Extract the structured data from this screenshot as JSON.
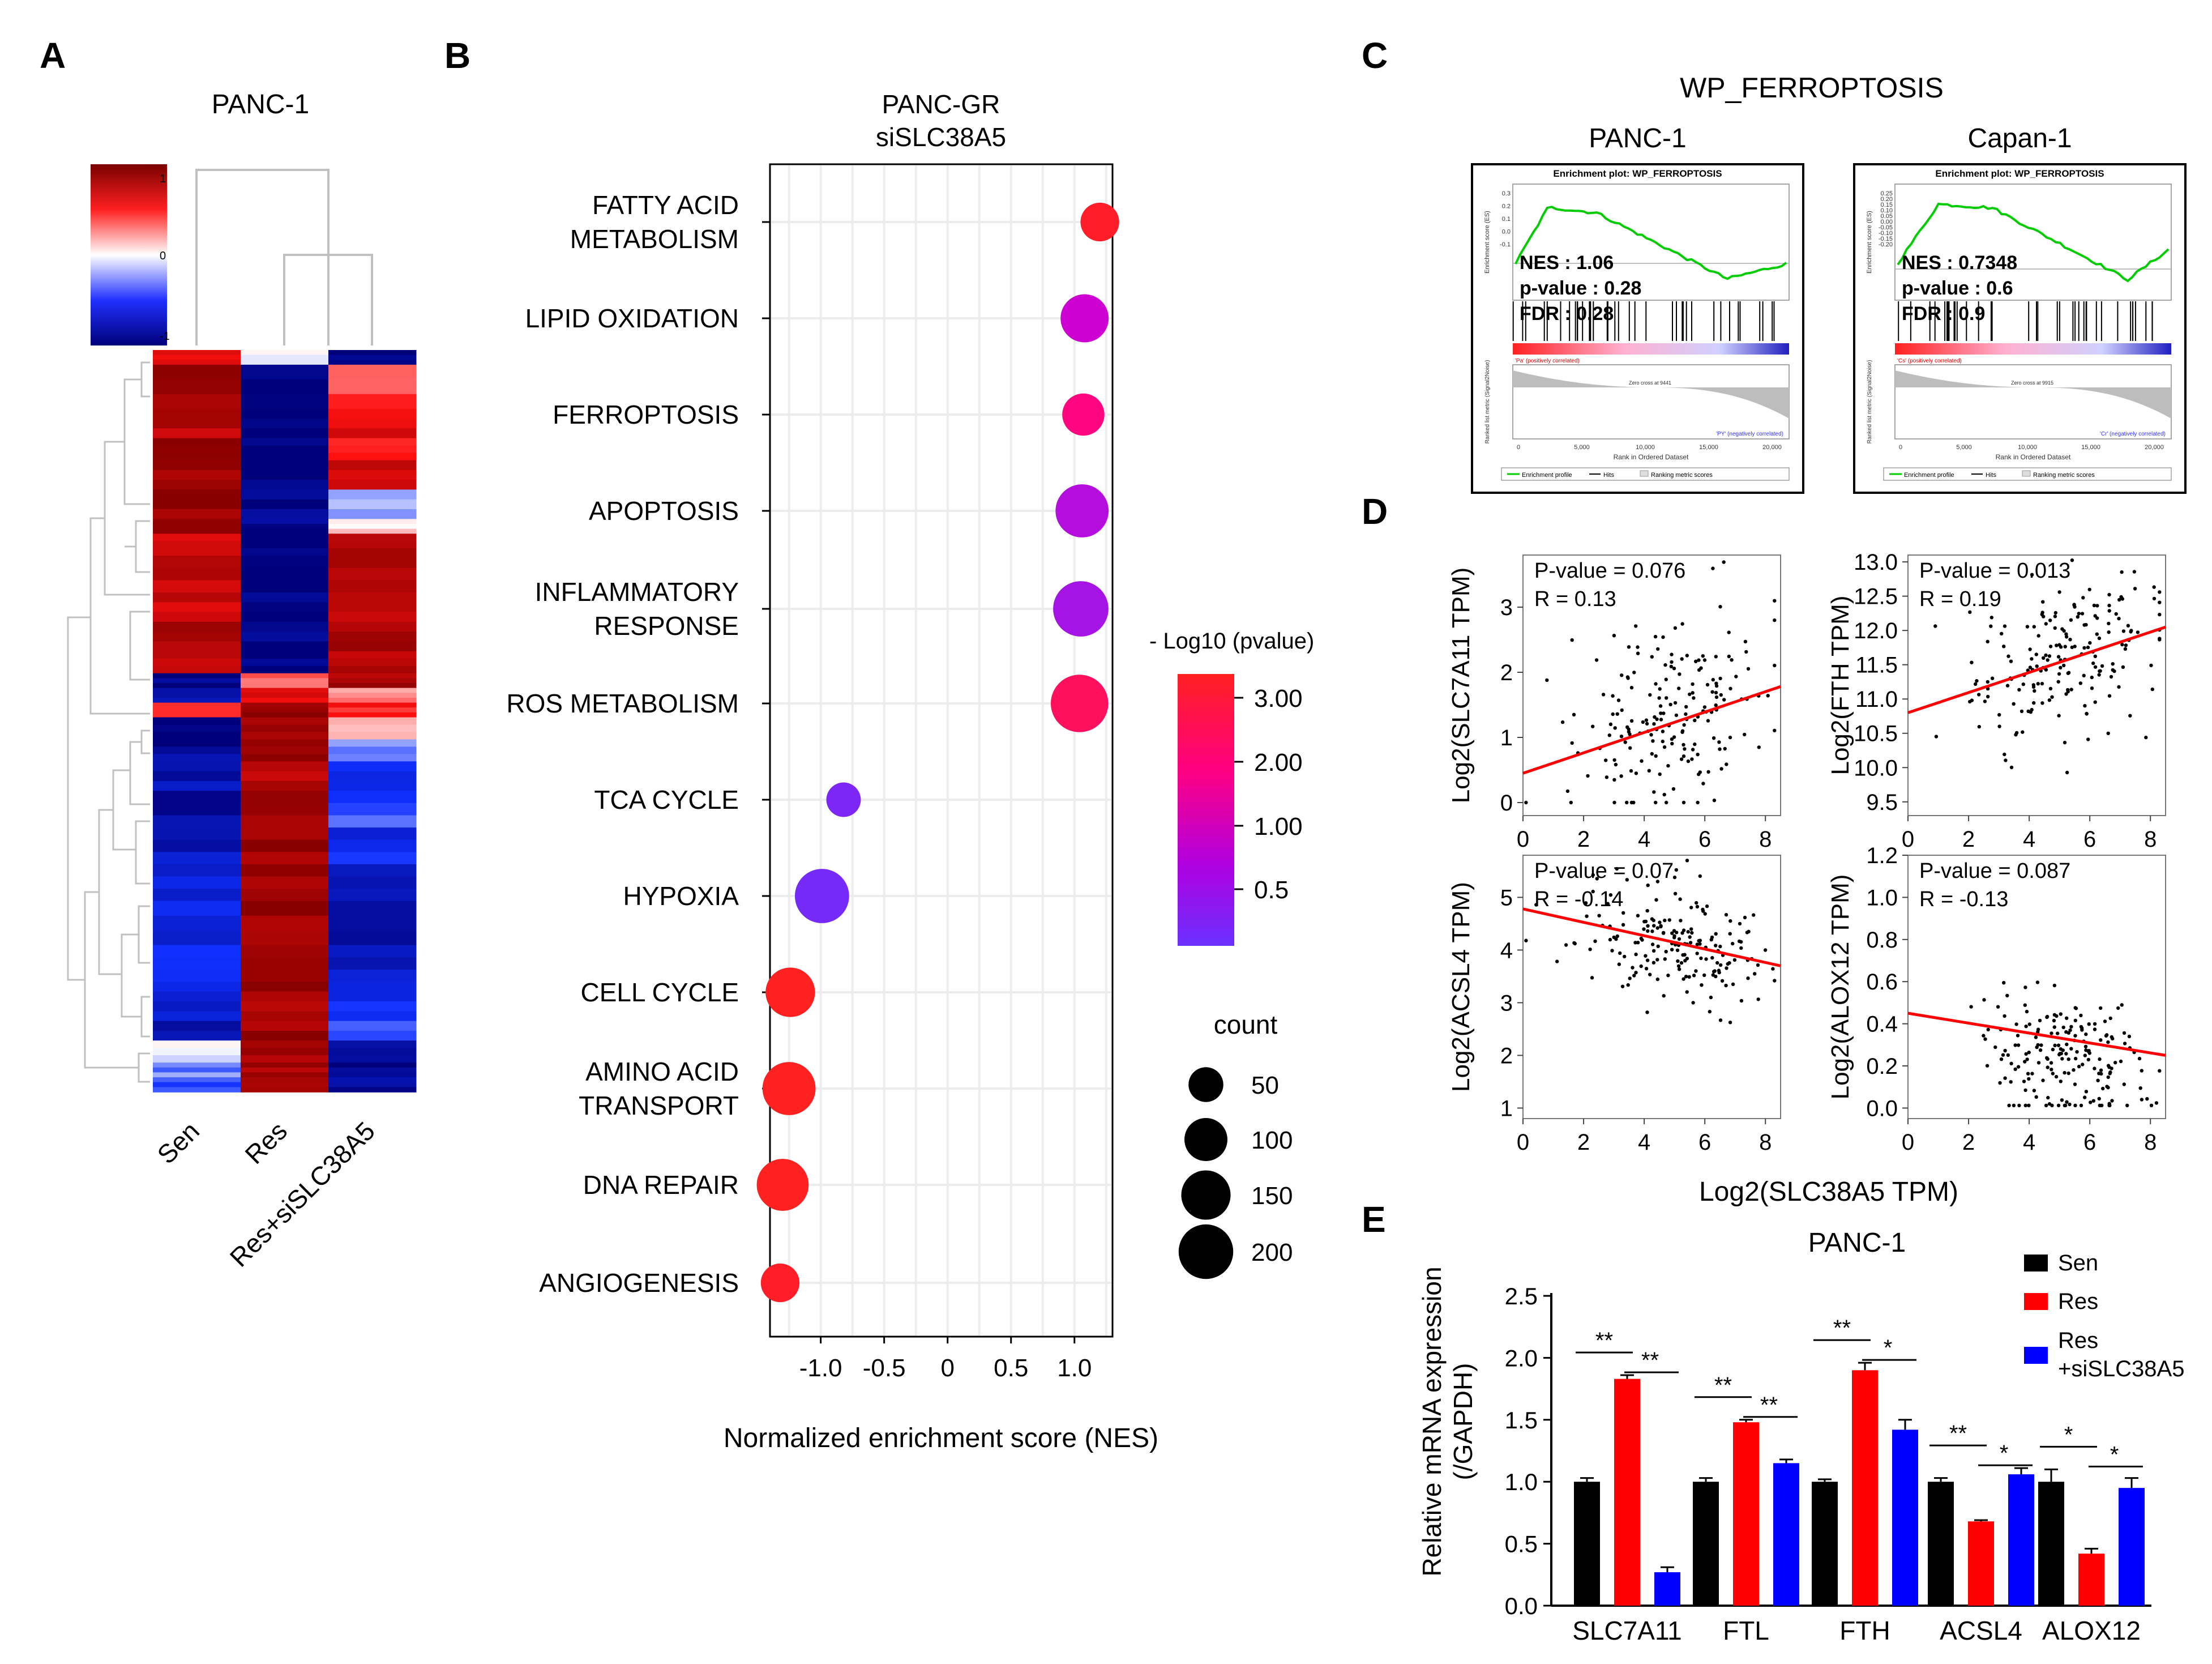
{
  "colors": {
    "heat_red": "#c00000",
    "heat_blue": "#00007f",
    "dot_high": "#ff2a2a",
    "dot_mid": "#d000d0",
    "dot_low": "#7a2cff",
    "bar_sen": "#000000",
    "bar_res": "#ff0000",
    "bar_si": "#0000ff",
    "gsea_green": "#00cc00",
    "fit_line": "#ff0000"
  },
  "panel_a": {
    "letter": "A",
    "title": "PANC-1",
    "scale_ticks": [
      "1",
      "0",
      "-1"
    ],
    "columns": [
      "Sen",
      "Res",
      "Res+siSLC38A5"
    ]
  },
  "panel_b": {
    "letter": "B",
    "title_line1": "PANC-GR",
    "title_line2": "siSLC38A5",
    "xlabel": "Normalized enrichment score (NES)",
    "legend_color_title": "- Log10  (pvalue)",
    "legend_size_title": "count"
  },
  "panel_c": {
    "letter": "C",
    "title": "WP_FERROPTOSIS",
    "plots": [
      {
        "cell": "PANC-1",
        "header": "Enrichment plot: WP_FERROPTOSIS",
        "nes": "NES : 1.06",
        "pval": "p-value : 0.28",
        "fdr": "FDR : 0.28",
        "ylab_top": "Enrichment score (ES)",
        "ylab_bottom": "Ranked list metric (Signal2Noise)",
        "pos_label": "'Pa' (positively correlated)",
        "neg_label": "'PY' (negatively correlated)",
        "zero_cross": "Zero cross at 9441",
        "es_ticks": [
          "0.3",
          "0.2",
          "0.1",
          "0.0",
          "-0.1"
        ],
        "rank_ticks": [
          "0",
          "5,000",
          "10,000",
          "15,000",
          "20,000"
        ],
        "xlab": "Rank in Ordered Dataset",
        "legend": [
          "Enrichment profile",
          "Hits",
          "Ranking metric scores"
        ]
      },
      {
        "cell": "Capan-1",
        "header": "Enrichment plot: WP_FERROPTOSIS",
        "nes": "NES : 0.7348",
        "pval": "p-value : 0.6",
        "fdr": "FDR : 0.9",
        "ylab_top": "Enrichment score (ES)",
        "ylab_bottom": "Ranked list metric (Signal2Noise)",
        "pos_label": "'Cs' (positively correlated)",
        "neg_label": "'Cr' (negatively correlated)",
        "zero_cross": "Zero cross at 9915",
        "es_ticks": [
          "0.25",
          "0.20",
          "0.15",
          "0.10",
          "0.05",
          "0.00",
          "-0.05",
          "-0.10",
          "-0.15",
          "-0.20"
        ],
        "rank_ticks": [
          "0",
          "5,000",
          "10,000",
          "15,000",
          "20,000"
        ],
        "xlab": "Rank in Ordered Dataset",
        "legend": [
          "Enrichment profile",
          "Hits",
          "Ranking metric scores"
        ]
      }
    ]
  },
  "panel_d": {
    "letter": "D",
    "xlabel": "Log2(SLC38A5 TPM)",
    "plots": [
      {
        "ylabel": "Log2(SLC7A11 TPM)",
        "pval": "P-value = 0.076",
        "r": "R = 0.13"
      },
      {
        "ylabel": "Log2(FTH TPM)",
        "pval": "P-value = 0.013",
        "r": "R = 0.19"
      },
      {
        "ylabel": "Log2(ACSL4 TPM)",
        "pval": "P-value = 0.07",
        "r": "R = -0.14"
      },
      {
        "ylabel": "Log2(ALOX12 TPM)",
        "pval": "P-value = 0.087",
        "r": "R = -0.13"
      }
    ]
  },
  "panel_e": {
    "letter": "E",
    "title": "PANC-1",
    "ylabel_line1": "Relative mRNA expression",
    "ylabel_line2": "(/GAPDH)",
    "legend": [
      "Sen",
      "Res",
      "Res",
      "+siSLC38A5"
    ],
    "sig": [
      [
        "**",
        "**"
      ],
      [
        "**",
        "**"
      ],
      [
        "**",
        "*"
      ],
      [
        "**",
        "*"
      ],
      [
        "*",
        "*"
      ]
    ]
  },
  "chart_data": [
    {
      "type": "scatter",
      "id": "nes_dotplot",
      "categories": [
        "FATTY ACID METABOLISM",
        "LIPID OXIDATION",
        "FERROPTOSIS",
        "APOPTOSIS",
        "INFLAMMATORY RESPONSE",
        "ROS METABOLISM",
        "TCA CYCLE",
        "HYPOXIA",
        "CELL CYCLE",
        "AMINO ACID TRANSPORT",
        "DNA REPAIR",
        "ANGIOGENESIS"
      ],
      "category_lines": [
        [
          "FATTY ACID",
          "METABOLISM"
        ],
        [
          "LIPID OXIDATION"
        ],
        [
          "FERROPTOSIS"
        ],
        [
          "APOPTOSIS"
        ],
        [
          "INFLAMMATORY",
          "RESPONSE"
        ],
        [
          "ROS METABOLISM"
        ],
        [
          "TCA CYCLE"
        ],
        [
          "HYPOXIA"
        ],
        [
          "CELL CYCLE"
        ],
        [
          "AMINO ACID",
          "TRANSPORT"
        ],
        [
          "DNA REPAIR"
        ],
        [
          "ANGIOGENESIS"
        ]
      ],
      "nes": [
        1.2,
        1.08,
        1.07,
        1.06,
        1.05,
        1.04,
        -0.82,
        -0.99,
        -1.24,
        -1.25,
        -1.3,
        -1.32
      ],
      "neg_log10_p": [
        3.2,
        1.6,
        1.9,
        1.2,
        0.95,
        2.4,
        0.3,
        0.2,
        3.3,
        3.3,
        3.3,
        3.2
      ],
      "count": [
        60,
        120,
        80,
        160,
        180,
        200,
        40,
        170,
        130,
        160,
        150,
        60
      ],
      "xticks": [
        "-1.0",
        "-0.5",
        "0",
        "0.5",
        "1.0"
      ],
      "xlim": [
        -1.4,
        1.3
      ],
      "colorbar_ticks": [
        "3.00",
        "2.00",
        "1.00",
        "0.5"
      ],
      "size_legend": [
        50,
        100,
        150,
        200
      ]
    },
    {
      "type": "scatter",
      "id": "corr_slc7a11",
      "xlim": [
        0,
        8.5
      ],
      "ylim": [
        -0.2,
        3.8
      ],
      "xticks": [
        "0",
        "2",
        "4",
        "6",
        "8"
      ],
      "yticks": [
        "0",
        "1",
        "2",
        "3"
      ],
      "fit": [
        [
          0,
          0.45
        ],
        [
          8.5,
          1.78
        ]
      ]
    },
    {
      "type": "scatter",
      "id": "corr_fth",
      "xlim": [
        0,
        8.5
      ],
      "ylim": [
        9.3,
        13.1
      ],
      "xticks": [
        "0",
        "2",
        "4",
        "6",
        "8"
      ],
      "yticks": [
        "9.5",
        "10.0",
        "10.5",
        "11.0",
        "11.5",
        "12.0",
        "12.5",
        "13.0"
      ],
      "fit": [
        [
          0,
          10.8
        ],
        [
          8.5,
          12.05
        ]
      ]
    },
    {
      "type": "scatter",
      "id": "corr_acsl4",
      "xlim": [
        0,
        8.5
      ],
      "ylim": [
        0.8,
        5.8
      ],
      "xticks": [
        "0",
        "2",
        "4",
        "6",
        "8"
      ],
      "yticks": [
        "1",
        "2",
        "3",
        "4",
        "5"
      ],
      "fit": [
        [
          0,
          4.78
        ],
        [
          8.5,
          3.7
        ]
      ]
    },
    {
      "type": "scatter",
      "id": "corr_alox12",
      "xlim": [
        0,
        8.5
      ],
      "ylim": [
        -0.05,
        1.2
      ],
      "xticks": [
        "0",
        "2",
        "4",
        "6",
        "8"
      ],
      "yticks": [
        "0.0",
        "0.2",
        "0.4",
        "0.6",
        "0.8",
        "1.0",
        "1.2"
      ],
      "fit": [
        [
          0,
          0.45
        ],
        [
          8.5,
          0.25
        ]
      ]
    },
    {
      "type": "bar",
      "id": "mrna_expression",
      "categories": [
        "SLC7A11",
        "FTL",
        "FTH",
        "ACSL4",
        "ALOX12"
      ],
      "series": [
        {
          "name": "Sen",
          "values": [
            1.0,
            1.0,
            1.0,
            1.0,
            1.0
          ],
          "errors": [
            0.03,
            0.03,
            0.02,
            0.03,
            0.1
          ]
        },
        {
          "name": "Res",
          "values": [
            1.83,
            1.48,
            1.9,
            0.68,
            0.42
          ],
          "errors": [
            0.03,
            0.02,
            0.06,
            0.01,
            0.04
          ]
        },
        {
          "name": "Res +siSLC38A5",
          "values": [
            0.27,
            1.15,
            1.42,
            1.06,
            0.95
          ],
          "errors": [
            0.04,
            0.03,
            0.08,
            0.05,
            0.08
          ]
        }
      ],
      "ylim": [
        0,
        2.5
      ],
      "yticks": [
        "0.0",
        "0.5",
        "1.0",
        "1.5",
        "2.0",
        "2.5"
      ]
    }
  ]
}
